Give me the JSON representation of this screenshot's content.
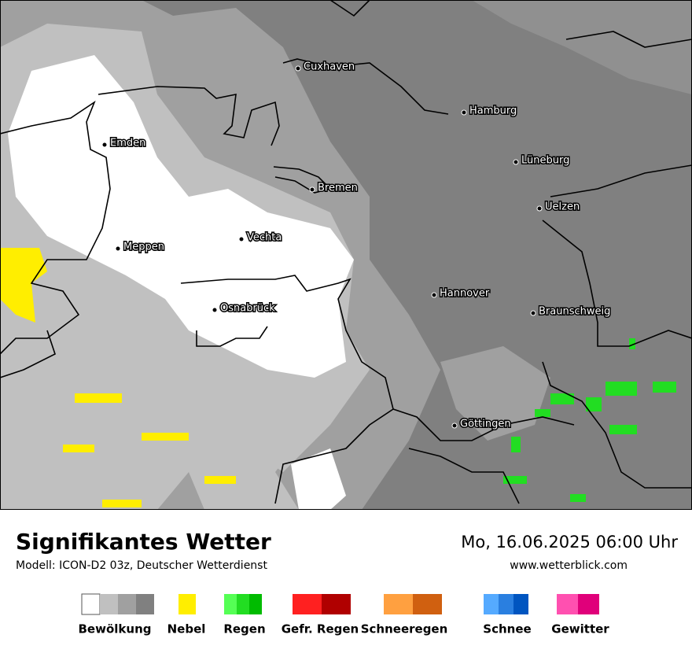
{
  "header": {
    "title": "Signifikantes Wetter",
    "subtitle": "Modell: ICON-D2 03z, Deutscher Wetterdienst",
    "date": "Mo, 16.06.2025 06:00 Uhr",
    "website": "www.wetterblick.com"
  },
  "cities": [
    "Cuxhaven",
    "Hamburg",
    "Emden",
    "Lüneburg",
    "Bremen",
    "Uelzen",
    "Vechta",
    "Meppen",
    "Hannover",
    "Osnabrück",
    "Braunschweig",
    "Göttingen"
  ],
  "legend": [
    {
      "label": "Bewölkung",
      "colors": [
        "#ffffff",
        "#c0c0c0",
        "#a0a0a0",
        "#808080"
      ]
    },
    {
      "label": "Nebel",
      "colors": [
        "#ffee00"
      ]
    },
    {
      "label": "Regen",
      "colors": [
        "#55ff55",
        "#22dd22",
        "#00bb00"
      ]
    },
    {
      "label": "Gefr. Regen",
      "colors": [
        "#ff2020",
        "#b00000"
      ]
    },
    {
      "label": "Schneeregen",
      "colors": [
        "#ffa040",
        "#d06010"
      ]
    },
    {
      "label": "Schnee",
      "colors": [
        "#55aaff",
        "#2a7fe0",
        "#0055c0"
      ]
    },
    {
      "label": "Gewitter",
      "colors": [
        "#ff50b0",
        "#e0007a"
      ]
    }
  ]
}
